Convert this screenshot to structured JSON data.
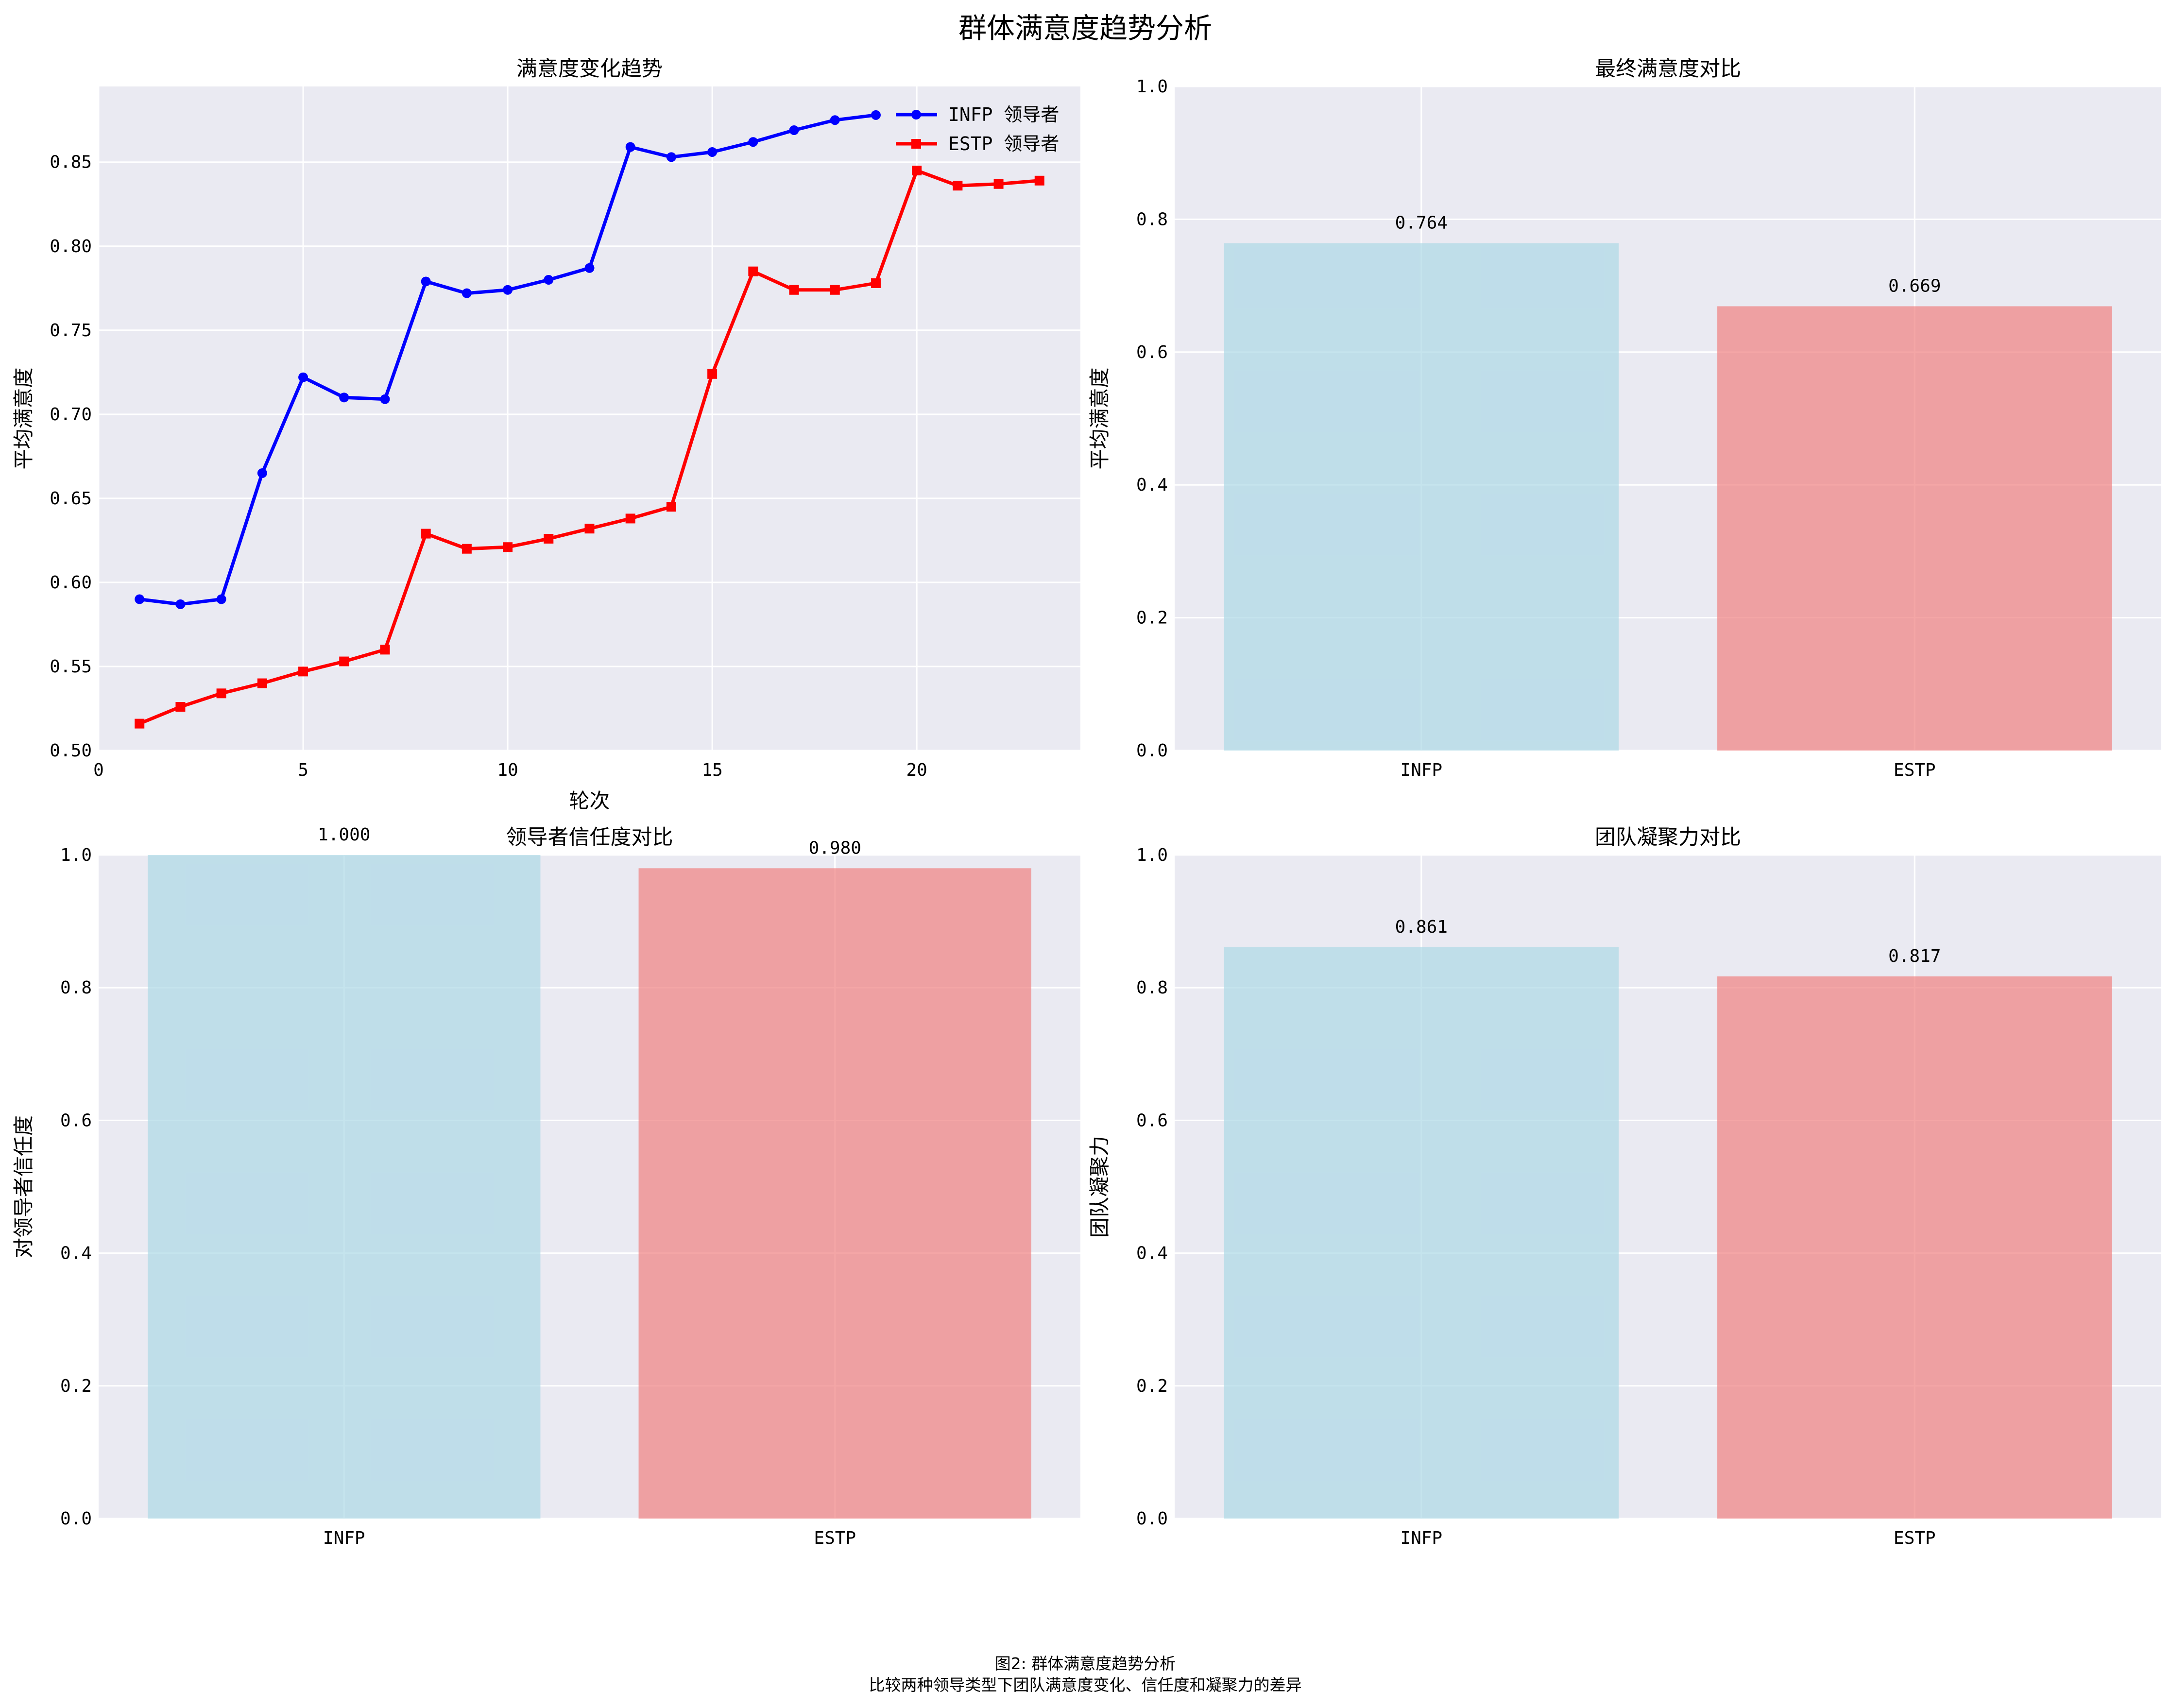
{
  "figure": {
    "title": "群体满意度趋势分析",
    "caption_line1": "图2: 群体满意度趋势分析",
    "caption_line2": "比较两种领导类型下团队满意度变化、信任度和凝聚力的差异"
  },
  "colors": {
    "background": "#eaeaf2",
    "grid": "#ffffff",
    "infp_line": "#0000ff",
    "estp_line": "#ff0000",
    "infp_bar": "#add8e6",
    "estp_bar": "#f08080"
  },
  "chart_data": [
    {
      "type": "line",
      "title": "满意度变化趋势",
      "xlabel": "轮次",
      "ylabel": "平均满意度",
      "xlim": [
        0,
        24
      ],
      "ylim": [
        0.5,
        0.895
      ],
      "xticks": [
        0,
        5,
        10,
        15,
        20
      ],
      "yticks": [
        0.5,
        0.55,
        0.6,
        0.65,
        0.7,
        0.75,
        0.8,
        0.85
      ],
      "legend_position": "upper-right",
      "grid": true,
      "series": [
        {
          "name": "INFP 领导者",
          "marker": "circle",
          "color": "#0000ff",
          "x": [
            1,
            2,
            3,
            4,
            5,
            6,
            7,
            8,
            9,
            10,
            11,
            12,
            13,
            14,
            15,
            16,
            17,
            18,
            19
          ],
          "y": [
            0.59,
            0.587,
            0.59,
            0.665,
            0.722,
            0.71,
            0.709,
            0.779,
            0.772,
            0.774,
            0.78,
            0.787,
            0.859,
            0.853,
            0.856,
            0.862,
            0.869,
            0.875,
            0.878
          ]
        },
        {
          "name": "ESTP 领导者",
          "marker": "square",
          "color": "#ff0000",
          "x": [
            1,
            2,
            3,
            4,
            5,
            6,
            7,
            8,
            9,
            10,
            11,
            12,
            13,
            14,
            15,
            16,
            17,
            18,
            19,
            20,
            21,
            22,
            23
          ],
          "y": [
            0.516,
            0.526,
            0.534,
            0.54,
            0.547,
            0.553,
            0.56,
            0.629,
            0.62,
            0.621,
            0.626,
            0.632,
            0.638,
            0.645,
            0.724,
            0.785,
            0.774,
            0.774,
            0.778,
            0.845,
            0.836,
            0.837,
            0.839
          ]
        }
      ]
    },
    {
      "type": "bar",
      "title": "最终满意度对比",
      "xlabel": "",
      "ylabel": "平均满意度",
      "ylim": [
        0,
        1.0
      ],
      "yticks": [
        0.0,
        0.2,
        0.4,
        0.6,
        0.8,
        1.0
      ],
      "categories": [
        "INFP",
        "ESTP"
      ],
      "values": [
        0.764,
        0.669
      ],
      "value_labels": [
        "0.764",
        "0.669"
      ],
      "grid": true
    },
    {
      "type": "bar",
      "title": "领导者信任度对比",
      "xlabel": "",
      "ylabel": "对领导者信任度",
      "ylim": [
        0,
        1.0
      ],
      "yticks": [
        0.0,
        0.2,
        0.4,
        0.6,
        0.8,
        1.0
      ],
      "categories": [
        "INFP",
        "ESTP"
      ],
      "values": [
        1.0,
        0.98
      ],
      "value_labels": [
        "1.000",
        "0.980"
      ],
      "grid": true
    },
    {
      "type": "bar",
      "title": "团队凝聚力对比",
      "xlabel": "",
      "ylabel": "团队凝聚力",
      "ylim": [
        0,
        1.0
      ],
      "yticks": [
        0.0,
        0.2,
        0.4,
        0.6,
        0.8,
        1.0
      ],
      "categories": [
        "INFP",
        "ESTP"
      ],
      "values": [
        0.861,
        0.817
      ],
      "value_labels": [
        "0.861",
        "0.817"
      ],
      "grid": true
    }
  ]
}
